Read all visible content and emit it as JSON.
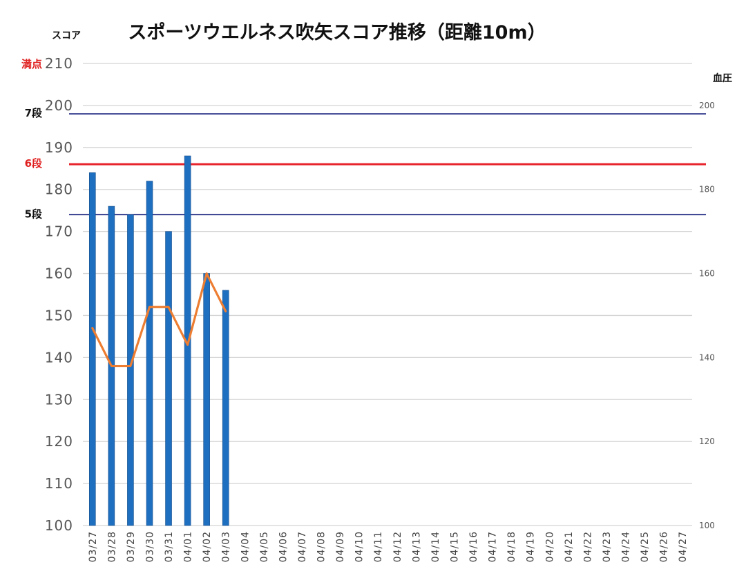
{
  "chart_data": {
    "type": "bar",
    "title": "スポーツウエルネス吹矢スコア推移（距離10m）",
    "ylabel": "スコア",
    "y2label": "血圧",
    "ylim": [
      100,
      210
    ],
    "y_ticks": [
      100,
      110,
      120,
      130,
      140,
      150,
      160,
      170,
      180,
      190,
      200,
      210
    ],
    "y2lim": [
      100,
      210
    ],
    "y2_ticks": [
      100,
      120,
      140,
      160,
      180,
      200
    ],
    "categories": [
      "03/27",
      "03/28",
      "03/29",
      "03/30",
      "03/31",
      "04/01",
      "04/02",
      "04/03",
      "04/04",
      "04/05",
      "04/06",
      "04/07",
      "04/08",
      "04/09",
      "04/10",
      "04/11",
      "04/12",
      "04/13",
      "04/14",
      "04/15",
      "04/16",
      "04/17",
      "04/18",
      "04/19",
      "04/20",
      "04/21",
      "04/22",
      "04/23",
      "04/24",
      "04/25",
      "04/26",
      "04/27"
    ],
    "grid": true,
    "series": [
      {
        "kind": "bar",
        "axis": "left",
        "color": "#1f6fc1",
        "values": [
          184,
          176,
          174,
          182,
          170,
          188,
          160,
          156,
          null,
          null,
          null,
          null,
          null,
          null,
          null,
          null,
          null,
          null,
          null,
          null,
          null,
          null,
          null,
          null,
          null,
          null,
          null,
          null,
          null,
          null,
          null,
          null
        ]
      },
      {
        "kind": "line",
        "axis": "right",
        "color": "#ed7d31",
        "values": [
          147,
          138,
          138,
          152,
          152,
          143,
          160,
          151,
          null,
          null,
          null,
          null,
          null,
          null,
          null,
          null,
          null,
          null,
          null,
          null,
          null,
          null,
          null,
          null,
          null,
          null,
          null,
          null,
          null,
          null,
          null,
          null
        ]
      }
    ],
    "reference_lines": [
      {
        "label": "満点",
        "value": 210,
        "color": "#e02020",
        "line": false
      },
      {
        "label": "7段",
        "value": 198,
        "color": "#111111",
        "line_color": "#1a237e"
      },
      {
        "label": "6段",
        "value": 186,
        "color": "#e02020",
        "line_color": "#e8232a"
      },
      {
        "label": "5段",
        "value": 174,
        "color": "#111111",
        "line_color": "#1a237e"
      }
    ]
  }
}
